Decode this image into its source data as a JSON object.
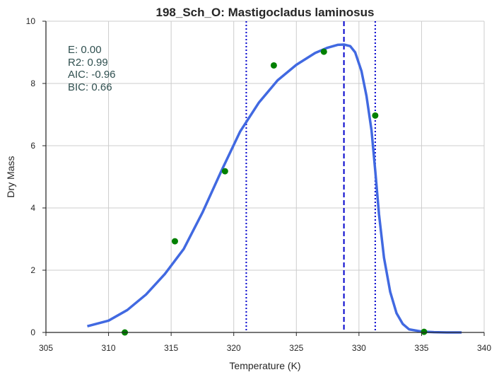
{
  "chart_data": {
    "type": "line",
    "title": "198_Sch_O: Mastigocladus laminosus",
    "xlabel": "Temperature (K)",
    "ylabel": "Dry Mass",
    "xlim": [
      305,
      340
    ],
    "ylim": [
      0,
      10
    ],
    "xticks": [
      "305",
      "310",
      "315",
      "320",
      "325",
      "330",
      "335",
      "340"
    ],
    "yticks": [
      "0",
      "2",
      "4",
      "6",
      "8",
      "10"
    ],
    "grid": true,
    "colors": {
      "fit": "#4169e1",
      "points": "#008000",
      "vline": "#0000cd",
      "grid": "#cccccc",
      "stats": "#2f4f4f"
    },
    "annotations": [
      "E:  0.00",
      "R2:  0.99",
      "AIC: -0.96",
      "BIC: 0.66"
    ],
    "points": [
      {
        "x": 311.3,
        "y": 0.0
      },
      {
        "x": 315.3,
        "y": 2.93
      },
      {
        "x": 319.3,
        "y": 5.18
      },
      {
        "x": 323.2,
        "y": 8.58
      },
      {
        "x": 327.2,
        "y": 9.02
      },
      {
        "x": 331.3,
        "y": 6.97
      },
      {
        "x": 335.2,
        "y": 0.02
      }
    ],
    "fit_curve": {
      "x": [
        308.3,
        310.0,
        311.5,
        313.0,
        314.5,
        316.0,
        317.5,
        319.0,
        320.5,
        322.0,
        323.5,
        325.0,
        326.5,
        327.5,
        328.3,
        328.8,
        329.3,
        329.7,
        330.2,
        330.6,
        331.0,
        331.3,
        331.6,
        332.0,
        332.5,
        333.0,
        333.5,
        334.0,
        335.0,
        336.0,
        337.0,
        338.2
      ],
      "y": [
        0.2,
        0.38,
        0.72,
        1.22,
        1.88,
        2.68,
        3.85,
        5.18,
        6.45,
        7.38,
        8.1,
        8.6,
        8.98,
        9.15,
        9.24,
        9.25,
        9.2,
        9.0,
        8.4,
        7.6,
        6.5,
        5.2,
        3.8,
        2.4,
        1.3,
        0.62,
        0.27,
        0.1,
        0.03,
        0.01,
        0.0,
        0.0
      ]
    },
    "vlines": [
      {
        "x": 328.8,
        "style": "dashed"
      },
      {
        "x": 321.0,
        "style": "dotted"
      },
      {
        "x": 331.3,
        "style": "dotted"
      }
    ]
  }
}
